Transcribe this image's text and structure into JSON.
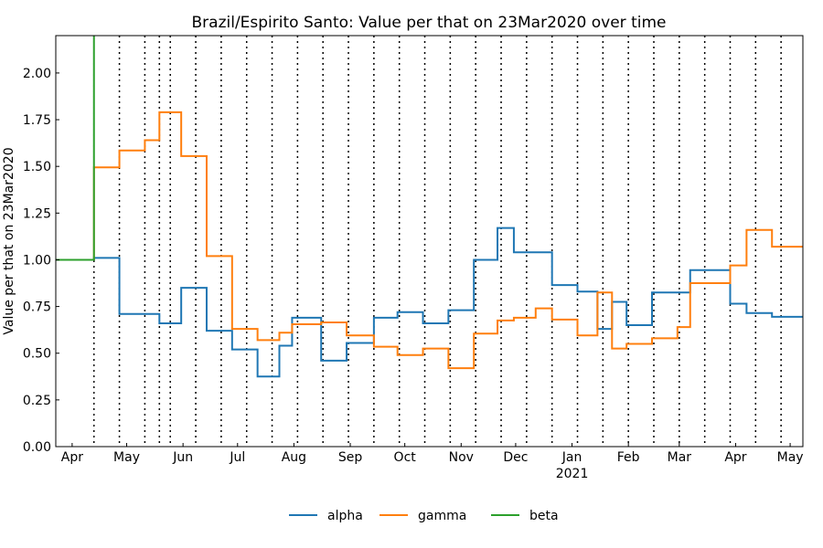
{
  "chart_data": {
    "type": "line",
    "title": "Brazil/Espirito Santo: Value per that on 23Mar2020 over time",
    "xlabel": "",
    "ylabel": "Value per that on 23Mar2020",
    "ylim": [
      0,
      2.2
    ],
    "xlim": [
      "2020-03-23",
      "2021-05-08"
    ],
    "yticks": [
      "0.00",
      "0.25",
      "0.50",
      "0.75",
      "1.00",
      "1.25",
      "1.50",
      "1.75",
      "2.00"
    ],
    "xticks": [
      {
        "date": "2020-04-01",
        "label": "Apr"
      },
      {
        "date": "2020-05-01",
        "label": "May"
      },
      {
        "date": "2020-06-01",
        "label": "Jun"
      },
      {
        "date": "2020-07-01",
        "label": "Jul"
      },
      {
        "date": "2020-08-01",
        "label": "Aug"
      },
      {
        "date": "2020-09-01",
        "label": "Sep"
      },
      {
        "date": "2020-10-01",
        "label": "Oct"
      },
      {
        "date": "2020-11-01",
        "label": "Nov"
      },
      {
        "date": "2020-12-01",
        "label": "Dec"
      },
      {
        "date": "2021-01-01",
        "label": "Jan",
        "sublabel": "2021"
      },
      {
        "date": "2021-02-01",
        "label": "Feb"
      },
      {
        "date": "2021-03-01",
        "label": "Mar"
      },
      {
        "date": "2021-04-01",
        "label": "Apr"
      },
      {
        "date": "2021-05-01",
        "label": "May"
      }
    ],
    "vlines": [
      "2020-04-13",
      "2020-04-27",
      "2020-05-11",
      "2020-05-19",
      "2020-05-25",
      "2020-06-08",
      "2020-06-22",
      "2020-07-06",
      "2020-07-20",
      "2020-08-03",
      "2020-08-17",
      "2020-08-31",
      "2020-09-14",
      "2020-09-28",
      "2020-10-12",
      "2020-10-26",
      "2020-11-09",
      "2020-11-23",
      "2020-12-07",
      "2020-12-21",
      "2021-01-04",
      "2021-01-18",
      "2021-02-01",
      "2021-02-15",
      "2021-03-01",
      "2021-03-15",
      "2021-03-29",
      "2021-04-12",
      "2021-04-26"
    ],
    "grid": false,
    "legend_position": "bottom-center",
    "series": [
      {
        "name": "alpha",
        "color": "#1f77b4",
        "steps": [
          [
            "2020-03-23",
            1.0
          ],
          [
            "2020-04-13",
            1.01
          ],
          [
            "2020-04-27",
            0.71
          ],
          [
            "2020-05-19",
            0.66
          ],
          [
            "2020-05-31",
            0.85
          ],
          [
            "2020-06-14",
            0.62
          ],
          [
            "2020-06-28",
            0.52
          ],
          [
            "2020-07-12",
            0.375
          ],
          [
            "2020-07-24",
            0.54
          ],
          [
            "2020-07-31",
            0.69
          ],
          [
            "2020-08-16",
            0.46
          ],
          [
            "2020-08-30",
            0.555
          ],
          [
            "2020-09-14",
            0.69
          ],
          [
            "2020-09-27",
            0.72
          ],
          [
            "2020-10-11",
            0.66
          ],
          [
            "2020-10-25",
            0.73
          ],
          [
            "2020-11-08",
            1.0
          ],
          [
            "2020-11-21",
            1.17
          ],
          [
            "2020-11-30",
            1.04
          ],
          [
            "2020-12-21",
            0.865
          ],
          [
            "2021-01-04",
            0.83
          ],
          [
            "2021-01-15",
            0.63
          ],
          [
            "2021-01-23",
            0.775
          ],
          [
            "2021-01-31",
            0.65
          ],
          [
            "2021-02-14",
            0.825
          ],
          [
            "2021-03-07",
            0.945
          ],
          [
            "2021-03-29",
            0.765
          ],
          [
            "2021-04-07",
            0.715
          ],
          [
            "2021-04-21",
            0.695
          ],
          [
            "2021-05-08",
            0.695
          ]
        ]
      },
      {
        "name": "gamma",
        "color": "#ff7f0e",
        "steps": [
          [
            "2020-03-23",
            1.0
          ],
          [
            "2020-04-13",
            1.495
          ],
          [
            "2020-04-27",
            1.585
          ],
          [
            "2020-05-11",
            1.64
          ],
          [
            "2020-05-19",
            1.79
          ],
          [
            "2020-05-31",
            1.555
          ],
          [
            "2020-06-14",
            1.02
          ],
          [
            "2020-06-28",
            0.63
          ],
          [
            "2020-07-12",
            0.57
          ],
          [
            "2020-07-24",
            0.61
          ],
          [
            "2020-07-31",
            0.655
          ],
          [
            "2020-08-16",
            0.665
          ],
          [
            "2020-08-30",
            0.595
          ],
          [
            "2020-09-14",
            0.535
          ],
          [
            "2020-09-27",
            0.49
          ],
          [
            "2020-10-11",
            0.525
          ],
          [
            "2020-10-25",
            0.42
          ],
          [
            "2020-11-08",
            0.605
          ],
          [
            "2020-11-21",
            0.675
          ],
          [
            "2020-11-30",
            0.69
          ],
          [
            "2020-12-12",
            0.74
          ],
          [
            "2020-12-21",
            0.68
          ],
          [
            "2021-01-04",
            0.595
          ],
          [
            "2021-01-15",
            0.825
          ],
          [
            "2021-01-23",
            0.525
          ],
          [
            "2021-01-31",
            0.55
          ],
          [
            "2021-02-14",
            0.58
          ],
          [
            "2021-02-28",
            0.64
          ],
          [
            "2021-03-07",
            0.875
          ],
          [
            "2021-03-29",
            0.97
          ],
          [
            "2021-04-07",
            1.16
          ],
          [
            "2021-04-21",
            1.07
          ],
          [
            "2021-05-08",
            1.07
          ]
        ]
      },
      {
        "name": "beta",
        "color": "#2ca02c",
        "steps": [
          [
            "2020-03-23",
            1.0
          ],
          [
            "2020-04-13",
            2.2
          ],
          [
            "2020-04-13",
            2.2
          ]
        ]
      }
    ]
  }
}
